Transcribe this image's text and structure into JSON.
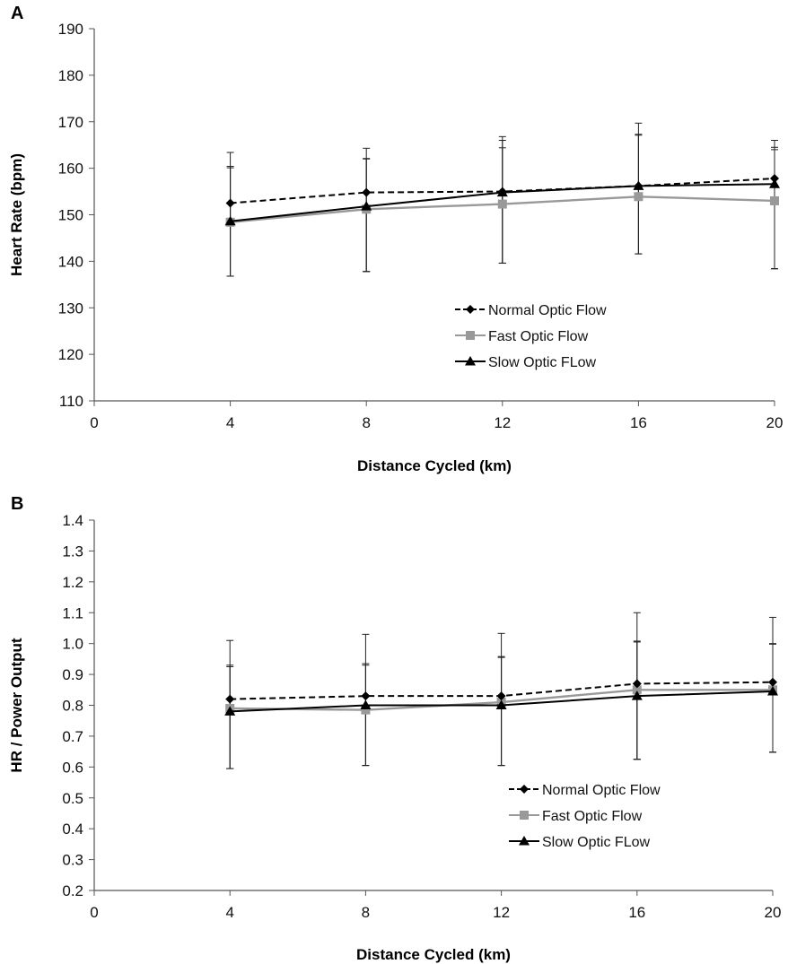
{
  "panels": [
    {
      "letter": "A",
      "chart_data": {
        "type": "line",
        "x": [
          4,
          8,
          12,
          16,
          20
        ],
        "xticks": [
          0,
          4,
          8,
          12,
          16,
          20
        ],
        "xlim": [
          0,
          20
        ],
        "ylim": [
          110,
          190
        ],
        "yticks": [
          110,
          120,
          130,
          140,
          150,
          160,
          170,
          180,
          190
        ],
        "ytick_labels": [
          "110",
          "120",
          "130",
          "140",
          "150",
          "160",
          "170",
          "180",
          "190"
        ],
        "xlabel": "Distance Cycled (km)",
        "ylabel": "Heart Rate (bpm)",
        "grid": false,
        "legend_position": "right-middle",
        "series": [
          {
            "name": "Normal Optic Flow",
            "color": "#000000",
            "dash": "dashed",
            "marker": "diamond",
            "values": [
              152.5,
              154.8,
              155,
              156.2,
              157.8
            ],
            "err_low": [
              136.8,
              137.8,
              139.6,
              141.6,
              138.4
            ],
            "err_high": [
              163.4,
              164.3,
              166.8,
              169.7,
              166.0
            ]
          },
          {
            "name": "Fast Optic Flow",
            "color": "#999999",
            "dash": "solid",
            "marker": "square",
            "values": [
              148.4,
              151.2,
              152.3,
              153.9,
              153.0
            ],
            "err_low": [
              136.8,
              137.8,
              139.6,
              141.6,
              138.4
            ],
            "err_high": [
              160.1,
              162.0,
              164.4,
              167.1,
              164.0
            ]
          },
          {
            "name": "Slow Optic FLow",
            "color": "#000000",
            "dash": "solid",
            "marker": "triangle",
            "values": [
              148.6,
              151.8,
              154.8,
              156.2,
              156.6
            ],
            "err_low": [
              136.8,
              137.8,
              139.6,
              141.6,
              138.4
            ],
            "err_high": [
              160.4,
              162.1,
              166.0,
              167.3,
              164.5
            ]
          }
        ]
      }
    },
    {
      "letter": "B",
      "chart_data": {
        "type": "line",
        "x": [
          4,
          8,
          12,
          16,
          20
        ],
        "xticks": [
          0,
          4,
          8,
          12,
          16,
          20
        ],
        "xlim": [
          0,
          20
        ],
        "ylim": [
          0.2,
          1.4
        ],
        "yticks": [
          0.2,
          0.3,
          0.4,
          0.5,
          0.6,
          0.7,
          0.8,
          0.9,
          1.0,
          1.1,
          1.2,
          1.3,
          1.4
        ],
        "ytick_labels": [
          "0.2",
          "0.3",
          "0.4",
          "0.5",
          "0.6",
          "0.7",
          "0.8",
          "0.9",
          "1.0",
          "1.1",
          "1.2",
          "1.3",
          "1.4"
        ],
        "xlabel": "Distance Cycled (km)",
        "ylabel": "HR / Power Output",
        "grid": false,
        "legend_position": "bottom-right",
        "series": [
          {
            "name": "Normal Optic Flow",
            "color": "#000000",
            "dash": "dashed",
            "marker": "diamond",
            "values": [
              0.82,
              0.83,
              0.83,
              0.87,
              0.875
            ],
            "err_low": [
              0.595,
              0.605,
              0.605,
              0.625,
              0.648
            ],
            "err_high": [
              1.01,
              1.03,
              1.033,
              1.1,
              1.085
            ]
          },
          {
            "name": "Fast Optic Flow",
            "color": "#999999",
            "dash": "solid",
            "marker": "square",
            "values": [
              0.79,
              0.785,
              0.81,
              0.85,
              0.85
            ],
            "err_low": [
              0.595,
              0.605,
              0.605,
              0.625,
              0.648
            ],
            "err_high": [
              0.93,
              0.935,
              0.958,
              1.008,
              1.0
            ]
          },
          {
            "name": "Slow Optic FLow",
            "color": "#000000",
            "dash": "solid",
            "marker": "triangle",
            "values": [
              0.78,
              0.8,
              0.8,
              0.83,
              0.845
            ],
            "err_low": [
              0.595,
              0.605,
              0.605,
              0.625,
              0.648
            ],
            "err_high": [
              0.925,
              0.93,
              0.955,
              1.005,
              0.998
            ]
          }
        ]
      }
    }
  ]
}
